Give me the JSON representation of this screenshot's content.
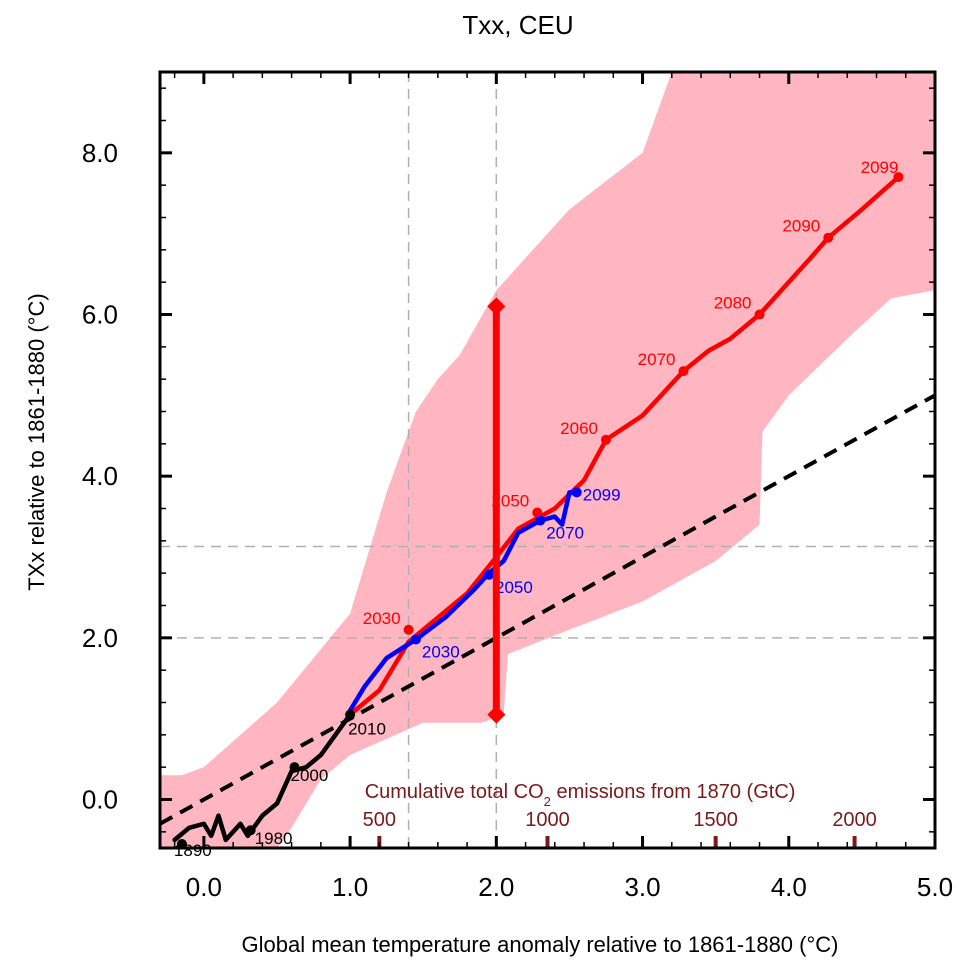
{
  "chart_data": {
    "type": "line",
    "title": "Txx, CEU",
    "xlabel": "Global mean temperature anomaly relative to 1861-1880 (°C)",
    "ylabel": "TXx relative to 1861-1880 (°C)",
    "xlim": [
      -0.3,
      5.0
    ],
    "ylim": [
      -0.6,
      9.0
    ],
    "x_ticks": [
      0.0,
      1.0,
      2.0,
      3.0,
      4.0,
      5.0
    ],
    "x_tick_labels": [
      "0.0",
      "1.0",
      "2.0",
      "3.0",
      "4.0",
      "5.0"
    ],
    "y_ticks": [
      0.0,
      2.0,
      4.0,
      6.0,
      8.0
    ],
    "y_tick_labels": [
      "0.0",
      "2.0",
      "4.0",
      "6.0",
      "8.0"
    ],
    "secondary_axis": {
      "label": "Cumulative total CO2 emissions from 1870 (GtC)",
      "ticks": [
        500,
        1000,
        1500,
        2000
      ],
      "tick_positions_x": [
        1.2,
        2.35,
        3.5,
        4.45
      ],
      "color": "#7a1a1a"
    },
    "reference_lines": {
      "vertical_x": [
        1.4,
        2.0
      ],
      "horizontal_y": [
        2.0,
        3.13
      ],
      "style": "dashed grey"
    },
    "diagonal_1to1": [
      [
        -0.3,
        -0.3
      ],
      [
        5.0,
        5.0
      ]
    ],
    "range_bar": {
      "x": 2.0,
      "y_low": 1.05,
      "y_high": 6.1,
      "color": "#ff0000"
    },
    "envelope": {
      "color": "#ffb6c1",
      "upper": [
        [
          -0.3,
          0.3
        ],
        [
          -0.15,
          0.3
        ],
        [
          0.0,
          0.4
        ],
        [
          0.5,
          1.2
        ],
        [
          1.0,
          2.3
        ],
        [
          1.25,
          3.8
        ],
        [
          1.45,
          4.8
        ],
        [
          1.6,
          5.2
        ],
        [
          1.75,
          5.5
        ],
        [
          2.0,
          6.3
        ],
        [
          2.5,
          7.3
        ],
        [
          3.0,
          8.0
        ],
        [
          3.2,
          9.0
        ],
        [
          5.0,
          9.0
        ]
      ],
      "lower": [
        [
          5.0,
          6.3
        ],
        [
          4.7,
          6.2
        ],
        [
          4.4,
          5.7
        ],
        [
          4.0,
          5.0
        ],
        [
          3.82,
          4.55
        ],
        [
          3.8,
          3.4
        ],
        [
          3.5,
          2.95
        ],
        [
          3.0,
          2.45
        ],
        [
          2.5,
          2.1
        ],
        [
          2.08,
          1.8
        ],
        [
          2.05,
          1.05
        ],
        [
          1.9,
          0.95
        ],
        [
          1.5,
          0.95
        ],
        [
          1.0,
          0.55
        ],
        [
          0.8,
          0.25
        ],
        [
          0.6,
          -0.35
        ],
        [
          0.5,
          -0.6
        ],
        [
          -0.3,
          -0.6
        ]
      ]
    },
    "series": [
      {
        "color": "#ff0000",
        "values_xy": [
          [
            1.0,
            1.05
          ],
          [
            1.2,
            1.35
          ],
          [
            1.4,
            1.95
          ],
          [
            1.6,
            2.25
          ],
          [
            1.8,
            2.55
          ],
          [
            2.0,
            3.0
          ],
          [
            2.15,
            3.35
          ],
          [
            2.4,
            3.6
          ],
          [
            2.6,
            3.95
          ],
          [
            2.75,
            4.45
          ],
          [
            3.0,
            4.75
          ],
          [
            3.28,
            5.3
          ],
          [
            3.45,
            5.55
          ],
          [
            3.6,
            5.7
          ],
          [
            3.8,
            6.0
          ],
          [
            4.0,
            6.4
          ],
          [
            4.15,
            6.7
          ],
          [
            4.27,
            6.95
          ],
          [
            4.5,
            7.3
          ],
          [
            4.75,
            7.7
          ]
        ],
        "labels": [
          {
            "text": "2030",
            "x": 1.4,
            "y": 2.1
          },
          {
            "text": "2050",
            "x": 2.28,
            "y": 3.55
          },
          {
            "text": "2060",
            "x": 2.75,
            "y": 4.45
          },
          {
            "text": "2070",
            "x": 3.28,
            "y": 5.3
          },
          {
            "text": "2080",
            "x": 3.8,
            "y": 6.0
          },
          {
            "text": "2090",
            "x": 4.27,
            "y": 6.95
          },
          {
            "text": "2099",
            "x": 4.75,
            "y": 7.7
          }
        ]
      },
      {
        "color": "#0000ff",
        "values_xy": [
          [
            1.0,
            1.1
          ],
          [
            1.1,
            1.4
          ],
          [
            1.25,
            1.75
          ],
          [
            1.45,
            1.98
          ],
          [
            1.65,
            2.25
          ],
          [
            1.85,
            2.6
          ],
          [
            1.95,
            2.8
          ],
          [
            2.05,
            2.95
          ],
          [
            2.15,
            3.3
          ],
          [
            2.3,
            3.45
          ],
          [
            2.4,
            3.5
          ],
          [
            2.45,
            3.4
          ],
          [
            2.5,
            3.8
          ],
          [
            2.55,
            3.8
          ]
        ],
        "labels": [
          {
            "text": "2030",
            "x": 1.45,
            "y": 1.98
          },
          {
            "text": "2050",
            "x": 1.95,
            "y": 2.78
          },
          {
            "text": "2070",
            "x": 2.3,
            "y": 3.45
          },
          {
            "text": "2099",
            "x": 2.55,
            "y": 3.8
          }
        ]
      },
      {
        "color": "#000000",
        "values_xy": [
          [
            -0.2,
            -0.5
          ],
          [
            -0.1,
            -0.35
          ],
          [
            0.0,
            -0.3
          ],
          [
            0.05,
            -0.45
          ],
          [
            0.1,
            -0.2
          ],
          [
            0.15,
            -0.5
          ],
          [
            0.25,
            -0.3
          ],
          [
            0.3,
            -0.45
          ],
          [
            0.4,
            -0.2
          ],
          [
            0.5,
            -0.05
          ],
          [
            0.6,
            0.35
          ],
          [
            0.7,
            0.4
          ],
          [
            0.8,
            0.55
          ],
          [
            0.9,
            0.8
          ],
          [
            1.0,
            1.05
          ]
        ],
        "labels": [
          {
            "text": "1890",
            "x": -0.15,
            "y": -0.55
          },
          {
            "text": "1980",
            "x": 0.32,
            "y": -0.38
          },
          {
            "text": "2000",
            "x": 0.62,
            "y": 0.4
          },
          {
            "text": "2010",
            "x": 1.0,
            "y": 1.05
          }
        ]
      }
    ]
  }
}
